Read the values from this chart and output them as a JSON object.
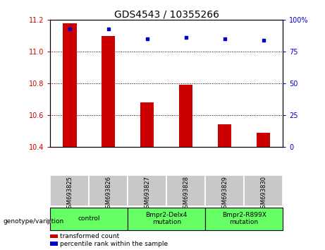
{
  "title": "GDS4543 / 10355266",
  "samples": [
    "GSM693825",
    "GSM693826",
    "GSM693827",
    "GSM693828",
    "GSM693829",
    "GSM693830"
  ],
  "bar_values": [
    11.18,
    11.1,
    10.68,
    10.79,
    10.54,
    10.49
  ],
  "bar_base": 10.4,
  "percentile_values": [
    93,
    93,
    85,
    86,
    85,
    84
  ],
  "ylim_left": [
    10.4,
    11.2
  ],
  "ylim_right": [
    0,
    100
  ],
  "yticks_left": [
    10.4,
    10.6,
    10.8,
    11.0,
    11.2
  ],
  "yticks_right": [
    0,
    25,
    50,
    75,
    100
  ],
  "yticklabels_right": [
    "0",
    "25",
    "50",
    "75",
    "100%"
  ],
  "bar_color": "#cc0000",
  "dot_color": "#0000cc",
  "groups": [
    {
      "label": "control",
      "indices": [
        0,
        1
      ],
      "color": "#66ff66"
    },
    {
      "label": "Bmpr2-Delx4\nmutation",
      "indices": [
        2,
        3
      ],
      "color": "#66ff66"
    },
    {
      "label": "Bmpr2-R899X\nmutation",
      "indices": [
        4,
        5
      ],
      "color": "#66ff66"
    }
  ],
  "group_label": "genotype/variation",
  "legend_items": [
    {
      "color": "#cc0000",
      "label": "transformed count"
    },
    {
      "color": "#0000cc",
      "label": "percentile rank within the sample"
    }
  ],
  "tick_cell_color": "#c8c8c8",
  "plot_bg": "#ffffff",
  "fig_bg": "#ffffff"
}
